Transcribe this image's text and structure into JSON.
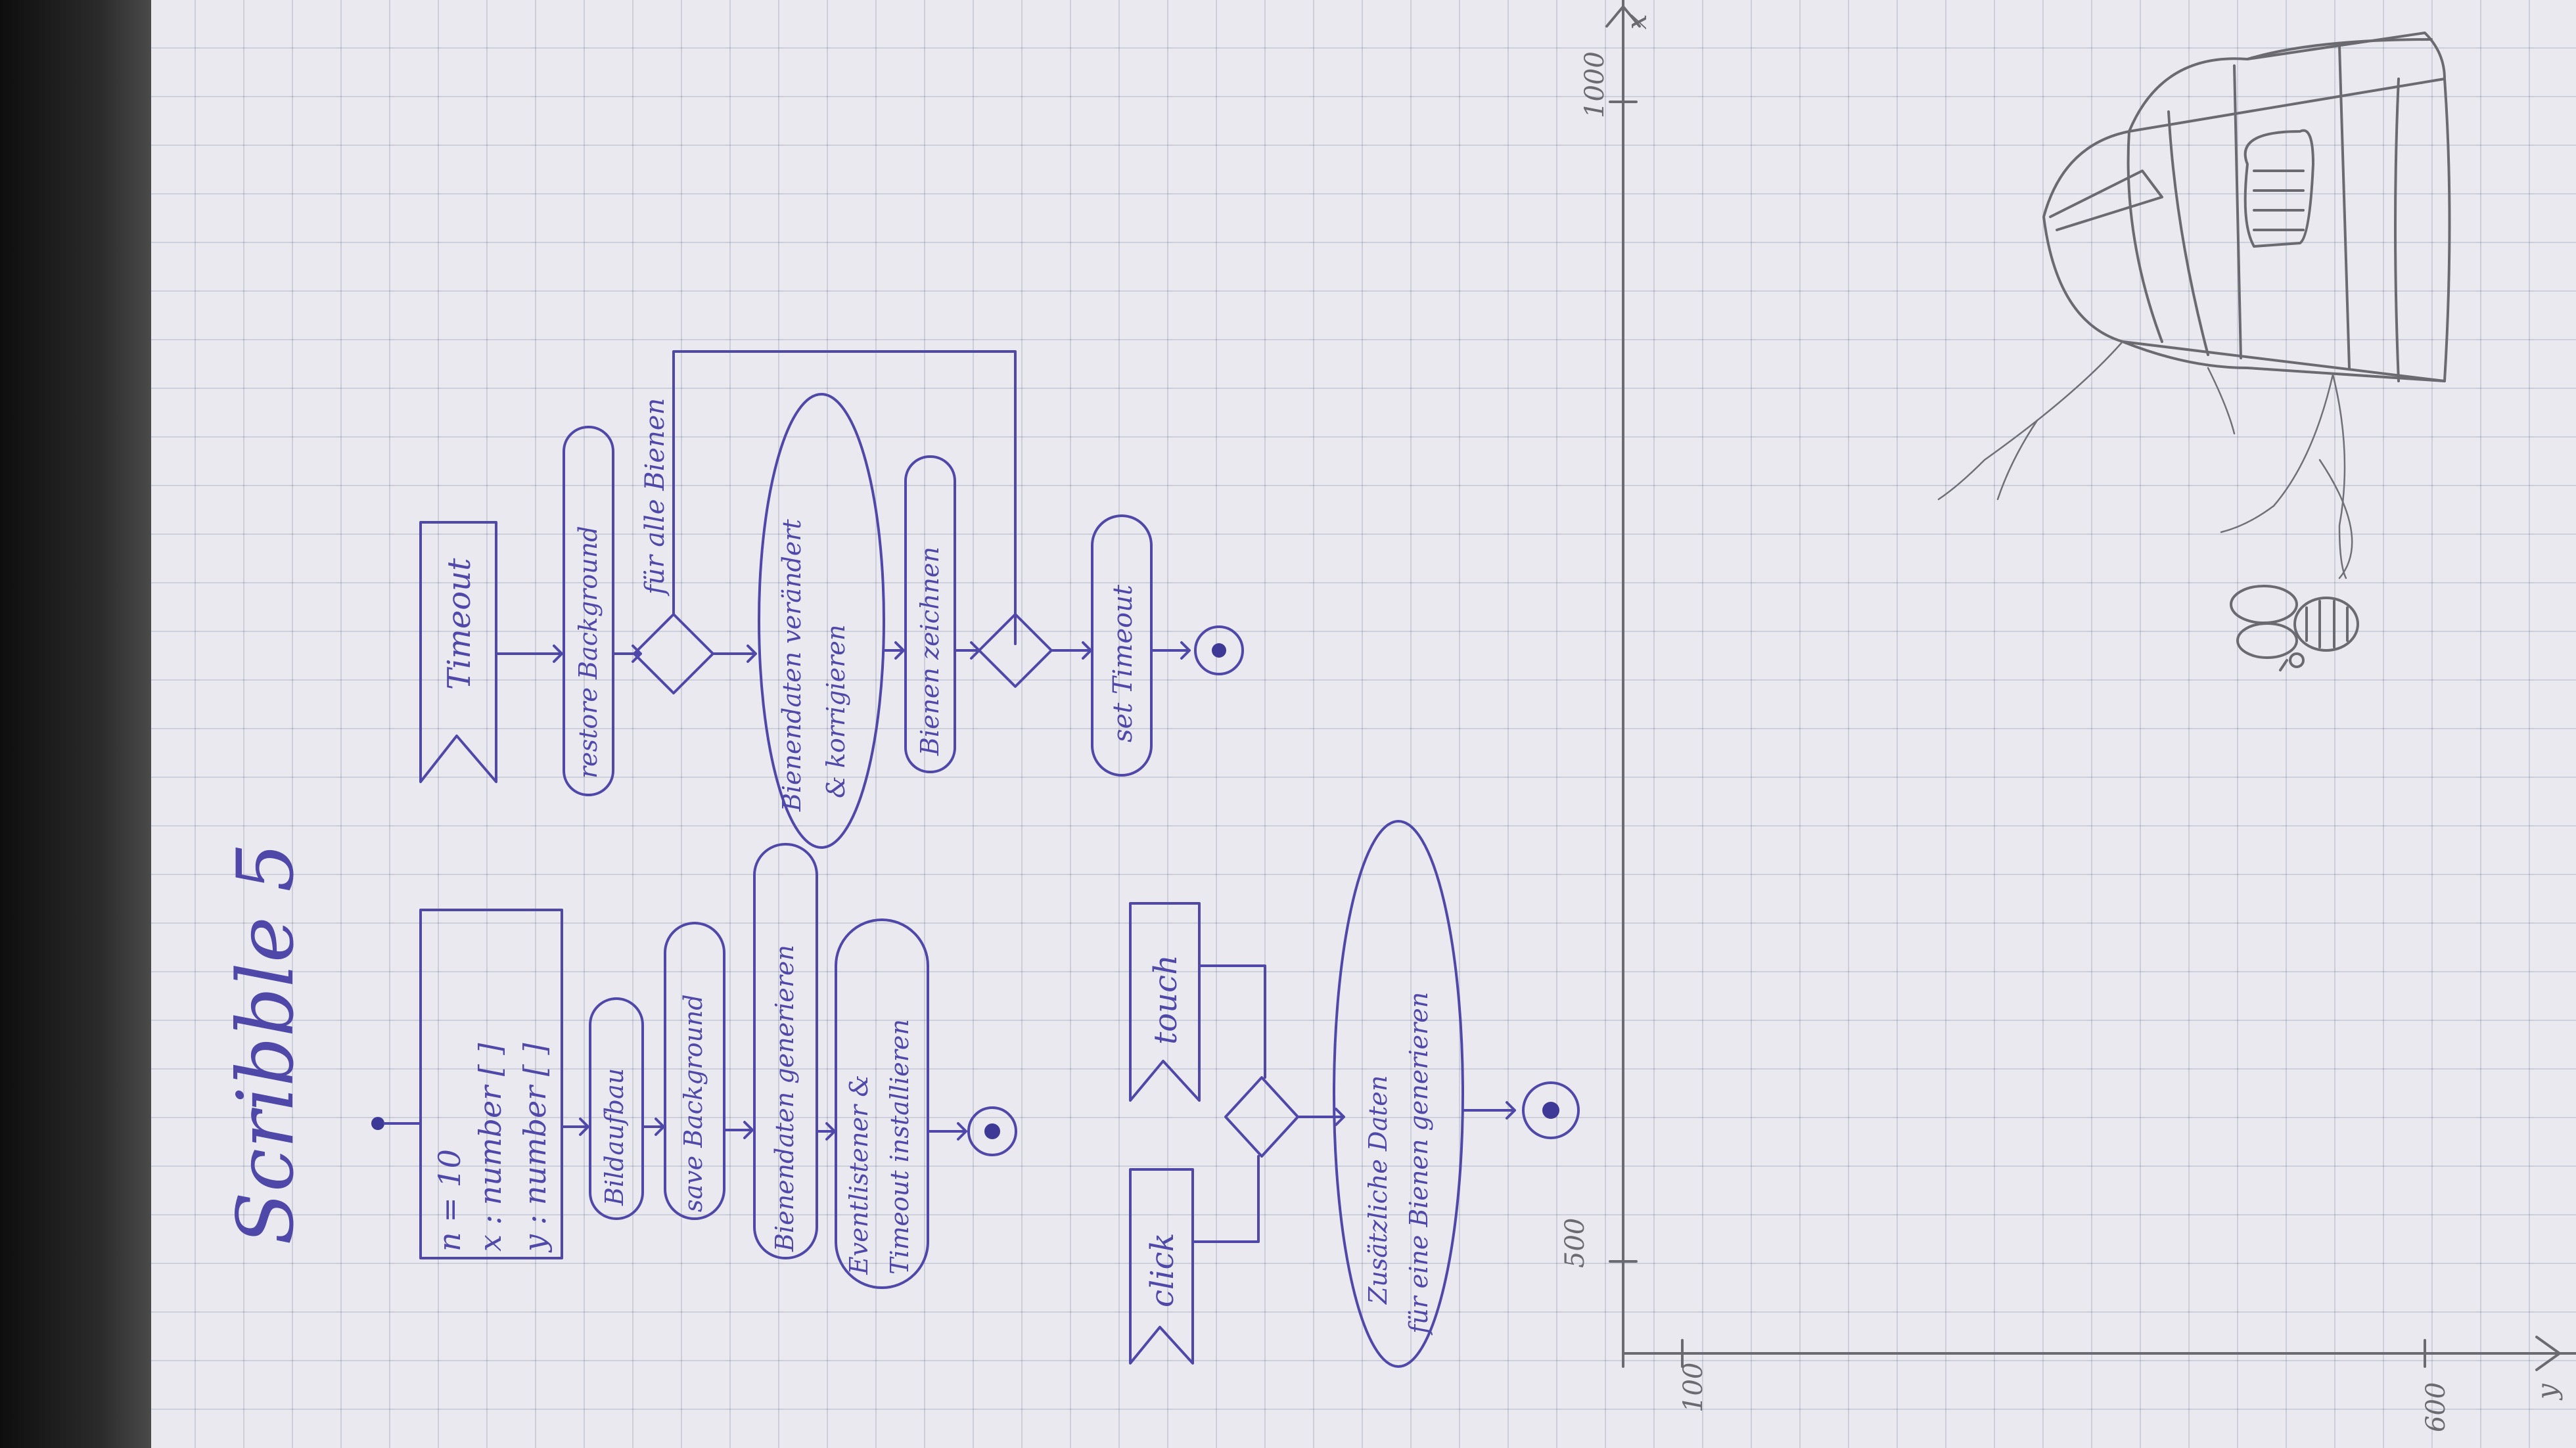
{
  "title": "Scribble 5",
  "init": {
    "vars": [
      "n = 10",
      "x : number [ ]",
      "y : number [ ]"
    ],
    "actions": [
      "Bildaufbau",
      "save Background",
      "Bienendaten generieren"
    ],
    "last_action_line1": "Eventlistener &",
    "last_action_line2": "Timeout installieren"
  },
  "timeout": {
    "signal": "Timeout",
    "action1": "restore Background",
    "loop_label": "für alle Bienen",
    "action2_line1": "Bienendaten verändert",
    "action2_line2": "& korrigieren",
    "action3": "Bienen zeichnen",
    "action4": "set Timeout"
  },
  "events": {
    "signal_click": "click",
    "signal_touch": "touch",
    "action_line1": "Zusätzliche Daten",
    "action_line2": "für eine Bienen generieren"
  },
  "canvas_sketch": {
    "labels": [
      "1000",
      "500",
      "100",
      "600",
      "x",
      "y"
    ]
  },
  "colors": {
    "ink": "#4f48a8",
    "pencil": "#6a6a70",
    "paper": "#e9e9ef"
  }
}
